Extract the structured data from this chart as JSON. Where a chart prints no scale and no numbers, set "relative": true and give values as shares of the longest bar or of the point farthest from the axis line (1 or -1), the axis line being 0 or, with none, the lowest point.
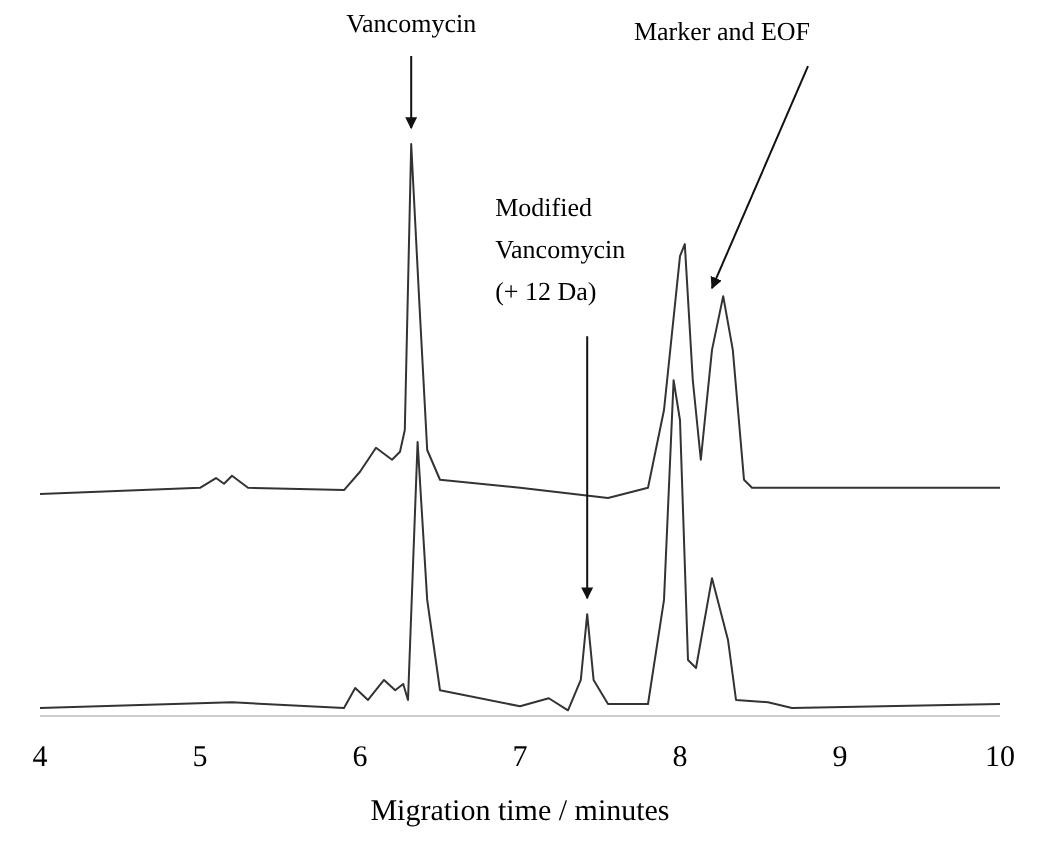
{
  "chart_data": {
    "type": "line",
    "relative": true,
    "xlabel": "Migration time / minutes",
    "xlim": [
      4,
      10
    ],
    "xticks": [
      4,
      5,
      6,
      7,
      8,
      9,
      10
    ],
    "grid": false,
    "marker": "none",
    "line_style": "solid",
    "annotations": [
      {
        "text": "Vancomycin",
        "x": 6.32,
        "y": 1.0
      },
      {
        "text": "Modified\nVancomycin\n(+ 12 Da)",
        "x": 7.42,
        "y": 0.178
      },
      {
        "text": "Marker and EOF",
        "x": 8.2,
        "y": 0.72
      }
    ],
    "series": [
      {
        "color": "#333333",
        "x": [
          4.0,
          5.0,
          5.1,
          5.15,
          5.2,
          5.3,
          5.9,
          6.0,
          6.1,
          6.2,
          6.25,
          6.28,
          6.32,
          6.37,
          6.42,
          6.5,
          7.0,
          7.55,
          7.8,
          7.9,
          8.0,
          8.03,
          8.08,
          8.13,
          8.2,
          8.27,
          8.33,
          8.4,
          8.45,
          10.0
        ],
        "values": [
          0.388,
          0.399,
          0.416,
          0.406,
          0.42,
          0.399,
          0.395,
          0.427,
          0.469,
          0.448,
          0.462,
          0.5,
          1.0,
          0.727,
          0.465,
          0.413,
          0.399,
          0.381,
          0.399,
          0.535,
          0.804,
          0.825,
          0.587,
          0.448,
          0.64,
          0.734,
          0.64,
          0.413,
          0.399,
          0.399
        ]
      },
      {
        "color": "#333333",
        "x": [
          4.0,
          5.2,
          5.9,
          5.97,
          6.05,
          6.15,
          6.22,
          6.27,
          6.3,
          6.36,
          6.42,
          6.5,
          7.0,
          7.18,
          7.3,
          7.38,
          7.42,
          7.46,
          7.55,
          7.8,
          7.9,
          7.96,
          8.0,
          8.05,
          8.1,
          8.2,
          8.3,
          8.35,
          8.55,
          8.7,
          10.0
        ],
        "values": [
          0.014,
          0.024,
          0.014,
          0.049,
          0.028,
          0.063,
          0.045,
          0.056,
          0.028,
          0.479,
          0.203,
          0.045,
          0.017,
          0.031,
          0.01,
          0.063,
          0.178,
          0.063,
          0.021,
          0.021,
          0.203,
          0.587,
          0.517,
          0.098,
          0.084,
          0.241,
          0.133,
          0.028,
          0.024,
          0.014,
          0.021
        ]
      }
    ]
  }
}
